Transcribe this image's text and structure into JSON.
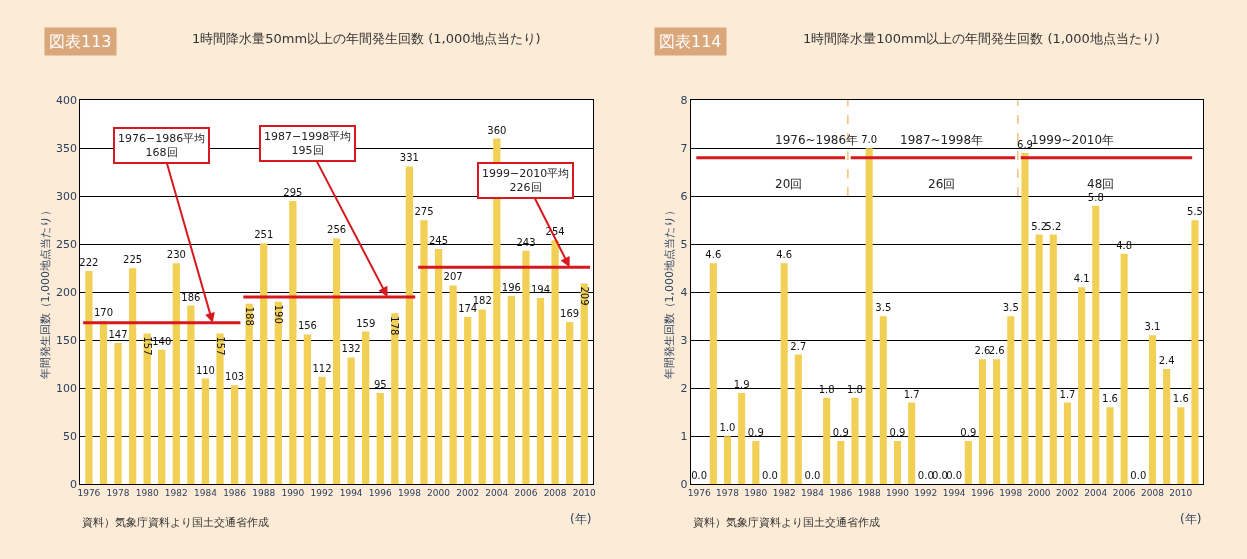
{
  "chart_data": [
    {
      "type": "bar",
      "title": "図表113",
      "subtitle": "1時間降水量50mm以上の年間発生回数 (1,000地点当たり)",
      "xlabel": "(年)",
      "ylabel": "年間発生回数（1,000地点当たり）",
      "x": [
        1976,
        1977,
        1978,
        1979,
        1980,
        1981,
        1982,
        1983,
        1984,
        1985,
        1986,
        1987,
        1988,
        1989,
        1990,
        1991,
        1992,
        1993,
        1994,
        1995,
        1996,
        1997,
        1998,
        1999,
        2000,
        2001,
        2002,
        2003,
        2004,
        2005,
        2006,
        2007,
        2008,
        2009,
        2010
      ],
      "series": [
        {
          "color": "#f2cf55",
          "values": [
            222,
            170,
            147,
            225,
            157,
            140,
            230,
            186,
            110,
            157,
            103,
            188,
            251,
            190,
            295,
            156,
            112,
            256,
            132,
            159,
            95,
            178,
            331,
            275,
            245,
            207,
            174,
            182,
            360,
            196,
            243,
            194,
            254,
            169,
            209
          ],
          "value_labels": [
            "222",
            "170",
            "147",
            "225",
            "157",
            "140",
            "230",
            "186",
            "110",
            "157",
            "103",
            "188",
            "251",
            "190",
            "295",
            "156",
            "112",
            "256",
            "132",
            "159",
            "95",
            "178",
            "331",
            "275",
            "245",
            "207",
            "174",
            "182",
            "360",
            "196",
            "243",
            "194",
            "254",
            "169",
            "209"
          ]
        },
        {
          "type": "line",
          "color": "#d7191f",
          "x": [
            1975.6,
            1986.4
          ],
          "values": [
            168,
            168
          ]
        },
        {
          "type": "line",
          "color": "#d7191f",
          "x": [
            1986.6,
            1998.4
          ],
          "values": [
            195,
            195
          ]
        },
        {
          "type": "line",
          "color": "#d7191f",
          "x": [
            1998.6,
            2010.4
          ],
          "values": [
            226,
            226
          ]
        }
      ],
      "xlim": [
        1975.4,
        2010.6
      ],
      "xticks": [
        1976,
        1978,
        1980,
        1982,
        1984,
        1986,
        1988,
        1990,
        1992,
        1994,
        1996,
        1998,
        2000,
        2002,
        2004,
        2006,
        2008,
        2010
      ],
      "ylim": [
        0,
        400
      ],
      "yticks": [
        0,
        50,
        100,
        150,
        200,
        250,
        300,
        350,
        400
      ],
      "grid": "y",
      "annotations": [
        "資料）気象庁資料より国土交通省作成",
        {
          "text": "1976−1986平均\n168回",
          "x": 1984.5,
          "y": 168
        },
        {
          "text": "1987−1998平均\n195回",
          "x": 1996.5,
          "y": 195
        },
        {
          "text": "1999−2010平均\n226回",
          "x": 2009,
          "y": 226
        }
      ]
    },
    {
      "type": "bar",
      "title": "図表114",
      "subtitle": "1時間降水量100mm以上の年間発生回数 (1,000地点当たり)",
      "xlabel": "(年)",
      "ylabel": "年間発生回数（1,000地点当たり）",
      "x": [
        1976,
        1977,
        1978,
        1979,
        1980,
        1981,
        1982,
        1983,
        1984,
        1985,
        1986,
        1987,
        1988,
        1989,
        1990,
        1991,
        1992,
        1993,
        1994,
        1995,
        1996,
        1997,
        1998,
        1999,
        2000,
        2001,
        2002,
        2003,
        2004,
        2005,
        2006,
        2007,
        2008,
        2009,
        2010,
        2011
      ],
      "series": [
        {
          "color": "#f2cf55",
          "values": [
            0.0,
            4.6,
            1.0,
            1.9,
            0.9,
            0.0,
            4.6,
            2.7,
            0.0,
            1.8,
            0.9,
            1.8,
            7.0,
            3.5,
            0.9,
            1.7,
            0.0,
            0.0,
            0.0,
            0.9,
            2.6,
            2.6,
            3.5,
            6.9,
            5.2,
            5.2,
            1.7,
            4.1,
            5.8,
            1.6,
            4.8,
            0.0,
            3.1,
            2.4,
            1.6,
            5.5
          ],
          "value_labels": [
            "0.0",
            "4.6",
            "1.0",
            "1.9",
            "0.9",
            "0.0",
            "4.6",
            "2.7",
            "0.0",
            "1.8",
            "0.9",
            "1.8",
            "7.0",
            "3.5",
            "0.9",
            "1.7",
            "0.0",
            "0.0",
            "0.0",
            "0.9",
            "2.6",
            "2.6",
            "3.5",
            "6.9",
            "5.2",
            "5.2",
            "1.7",
            "4.1",
            "5.8",
            "1.6",
            "4.8",
            "0.0",
            "3.1",
            "2.4",
            "1.6",
            "5.5"
          ]
        },
        {
          "type": "line",
          "color": "#d7191f",
          "x": [
            1975.8,
            1986.3
          ],
          "values": [
            6.8,
            6.8
          ]
        },
        {
          "type": "line",
          "color": "#d7191f",
          "x": [
            1986.7,
            1998.3
          ],
          "values": [
            6.8,
            6.8
          ]
        },
        {
          "type": "line",
          "color": "#d7191f",
          "x": [
            1998.7,
            2010.8
          ],
          "values": [
            6.8,
            6.8
          ]
        }
      ],
      "xlim": [
        1975.4,
        2011.6
      ],
      "xticks": [
        1976,
        1978,
        1980,
        1982,
        1984,
        1986,
        1988,
        1990,
        1992,
        1994,
        1996,
        1998,
        2000,
        2002,
        2004,
        2006,
        2008,
        2010
      ],
      "ylim": [
        0,
        8
      ],
      "yticks": [
        0,
        1,
        2,
        3,
        4,
        5,
        6,
        7,
        8
      ],
      "grid": "y",
      "ref_lines": [
        {
          "axis": "x",
          "value": 1986.5,
          "color": "#f0a030",
          "line_style": "dashed"
        },
        {
          "axis": "x",
          "value": 1998.5,
          "color": "#f0a030",
          "line_style": "dashed"
        }
      ],
      "annotations": [
        "資料）気象庁資料より国土交通省作成",
        "1976~1986年",
        "20回",
        "1987~1998年",
        "26回",
        "1999~2010年",
        "48回"
      ]
    }
  ]
}
